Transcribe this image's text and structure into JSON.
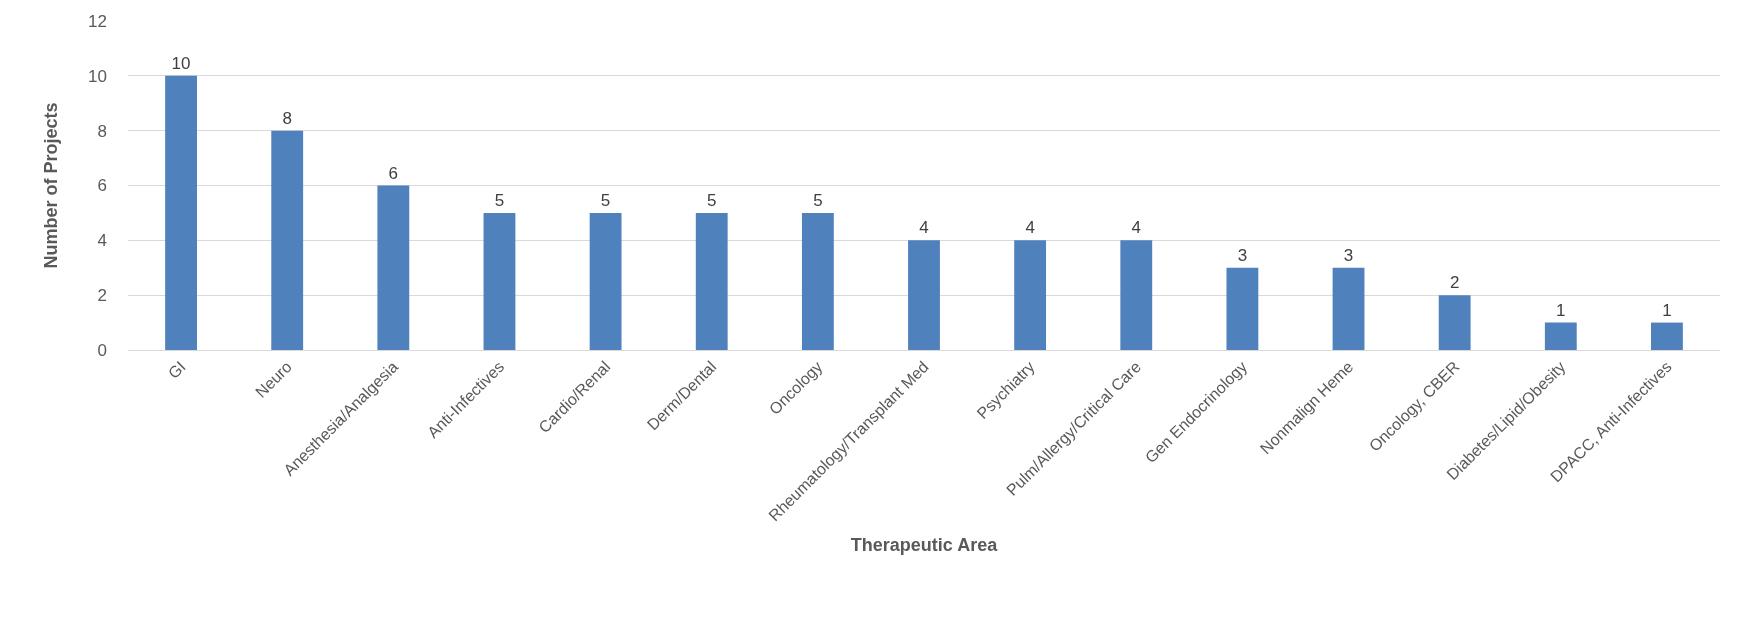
{
  "chart_data": {
    "type": "bar",
    "xlabel": "Therapeutic Area",
    "ylabel": "Number of Projects",
    "categories": [
      "GI",
      "Neuro",
      "Anesthesia/Analgesia",
      "Anti-Infectives",
      "Cardio/Renal",
      "Derm/Dental",
      "Oncology",
      "Rheumatology/Transplant Med",
      "Psychiatry",
      "Pulm/Allergy/Critical Care",
      "Gen Endocrinology",
      "Nonmalign Heme",
      "Oncology, CBER",
      "Diabetes/Lipid/Obesity",
      "DPACC, Anti-Infectives"
    ],
    "values": [
      10,
      8,
      6,
      5,
      5,
      5,
      5,
      4,
      4,
      4,
      3,
      3,
      2,
      1,
      1
    ],
    "color": "#4f81bd",
    "ylim": [
      0,
      12
    ],
    "yticks": [
      0,
      2,
      4,
      6,
      8,
      10,
      12
    ],
    "grid": "y",
    "data_labels": true,
    "legend": false
  }
}
